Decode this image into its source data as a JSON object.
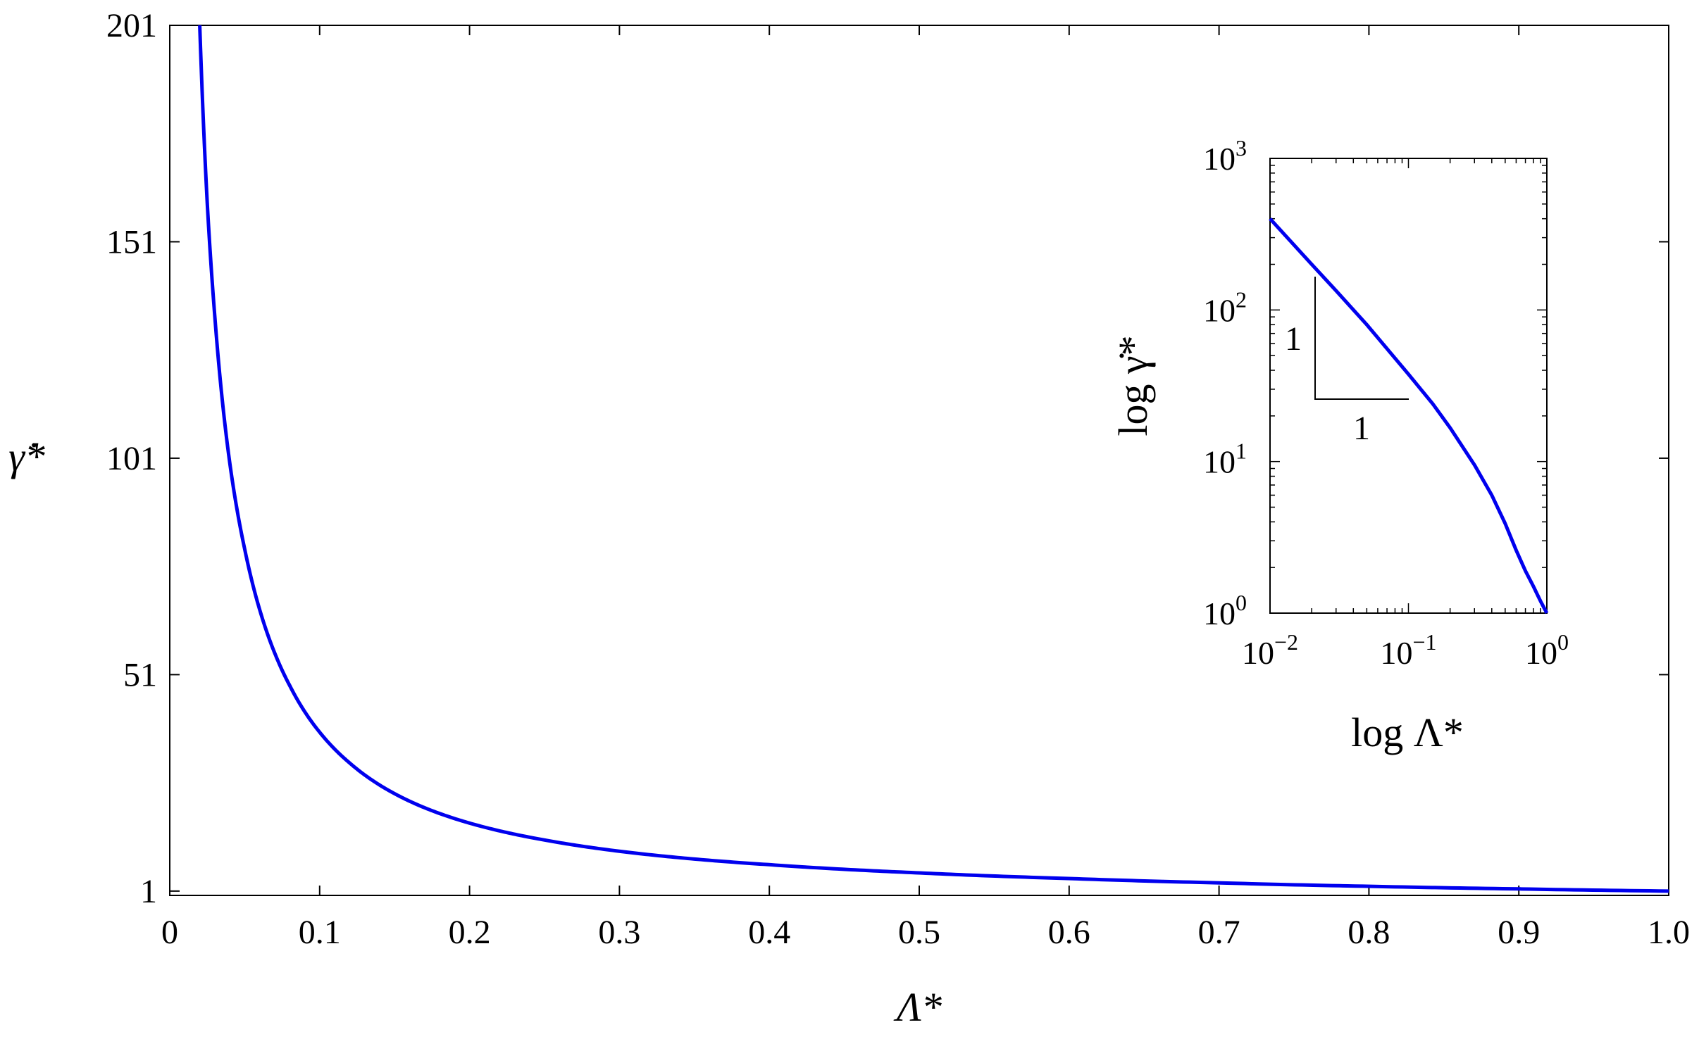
{
  "chart_data": [
    {
      "type": "line",
      "xlabel": "Λ*",
      "ylabel": "γ̇*",
      "xlim": [
        0,
        1.0
      ],
      "ylim": [
        0,
        201
      ],
      "x_ticks": [
        "0",
        "0.1",
        "0.2",
        "0.3",
        "0.4",
        "0.5",
        "0.6",
        "0.7",
        "0.8",
        "0.9",
        "1.0"
      ],
      "y_ticks": [
        "1",
        "51",
        "101",
        "151",
        "201"
      ],
      "grid": false,
      "series": [
        {
          "color": "#0000ee",
          "x": [
            0.02,
            0.025,
            0.03,
            0.04,
            0.05,
            0.06,
            0.07,
            0.08,
            0.1,
            0.12,
            0.15,
            0.2,
            0.25,
            0.3,
            0.4,
            0.5,
            0.6,
            0.7,
            0.8,
            0.9,
            1.0
          ],
          "y": [
            201,
            160,
            134,
            100,
            80,
            66,
            56,
            48.5,
            37.7,
            30.6,
            23.5,
            16.7,
            12.8,
            10.2,
            7.1,
            5.2,
            3.9,
            2.9,
            2.1,
            1.5,
            1.0
          ]
        }
      ]
    },
    {
      "type": "line",
      "xlabel": "log Λ*",
      "ylabel": "log γ̇*",
      "xscale": "log",
      "yscale": "log",
      "xlim": [
        0.01,
        1
      ],
      "ylim": [
        1,
        1000
      ],
      "x_ticks": [
        {
          "base": "10",
          "exp": "−2",
          "value": 0.01
        },
        {
          "base": "10",
          "exp": "−1",
          "value": 0.1
        },
        {
          "base": "10",
          "exp": "0",
          "value": 1
        }
      ],
      "y_ticks": [
        {
          "base": "10",
          "exp": "0",
          "value": 1
        },
        {
          "base": "10",
          "exp": "1",
          "value": 10
        },
        {
          "base": "10",
          "exp": "2",
          "value": 100
        },
        {
          "base": "10",
          "exp": "3",
          "value": 1000
        }
      ],
      "slope_triangle": {
        "rise_label": "1",
        "run_label": "1"
      },
      "series": [
        {
          "color": "#0000ee",
          "x": [
            0.01,
            0.02,
            0.03,
            0.05,
            0.1,
            0.15,
            0.2,
            0.3,
            0.4,
            0.5,
            0.6,
            0.7,
            0.8,
            0.9,
            1.0
          ],
          "y": [
            400,
            200,
            134,
            80,
            37.7,
            24,
            16.7,
            9.5,
            6,
            3.9,
            2.6,
            1.9,
            1.5,
            1.2,
            1.0
          ]
        }
      ]
    }
  ]
}
